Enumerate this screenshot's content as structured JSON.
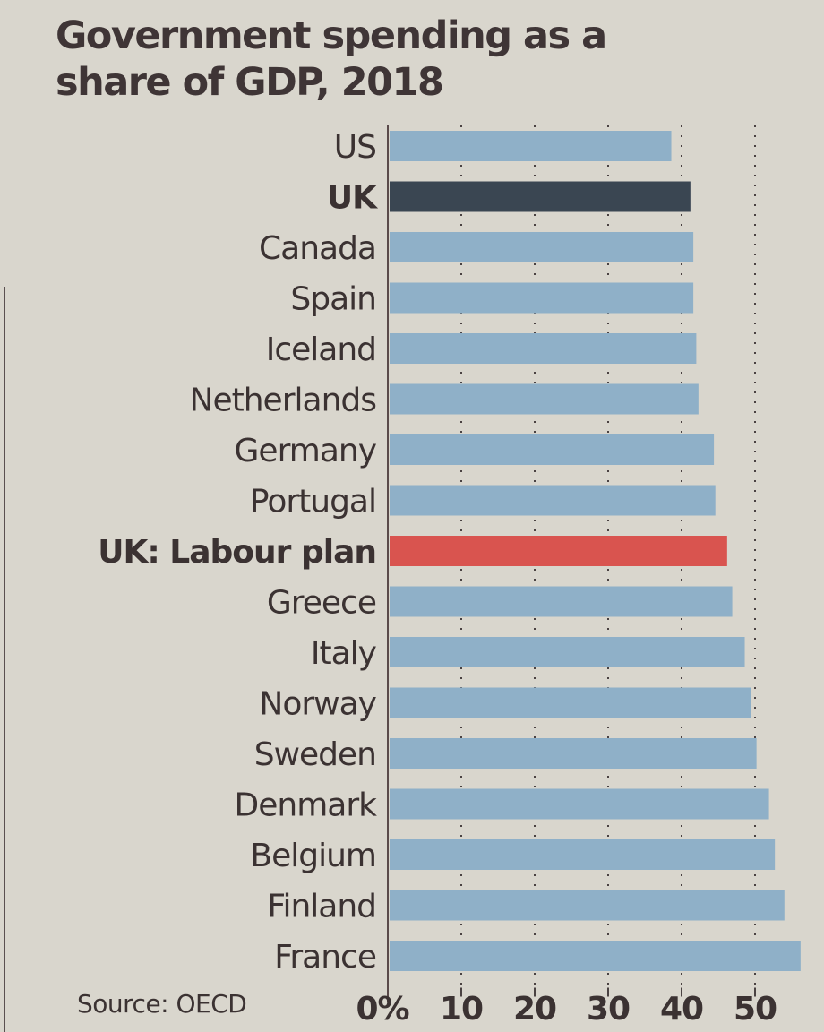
{
  "colors": {
    "background": "#d9d6cd",
    "bar_default": "#8fb0c8",
    "bar_uk": "#3a4652",
    "bar_labour": "#d9544f",
    "text": "#3b3232",
    "gridline": "#4a4242"
  },
  "chart_data": {
    "type": "bar",
    "orientation": "horizontal",
    "title": "Government spending as a share of GDP, 2018",
    "xlabel": "",
    "ylabel": "",
    "source": "Source: OECD",
    "xlim": [
      0,
      57
    ],
    "grid": true,
    "x_ticks": [
      0,
      10,
      20,
      30,
      40,
      50
    ],
    "x_tick_labels": [
      "0%",
      "10",
      "20",
      "30",
      "40",
      "50"
    ],
    "categories": [
      "US",
      "UK",
      "Canada",
      "Spain",
      "Iceland",
      "Netherlands",
      "Germany",
      "Portugal",
      "UK: Labour plan",
      "Greece",
      "Italy",
      "Norway",
      "Sweden",
      "Denmark",
      "Belgium",
      "Finland",
      "France"
    ],
    "values": [
      38.6,
      41.2,
      41.6,
      41.6,
      42.0,
      42.3,
      44.4,
      44.6,
      46.2,
      46.9,
      48.6,
      49.5,
      50.2,
      51.9,
      52.7,
      54.0,
      56.2
    ],
    "highlights": {
      "UK": "uk",
      "UK: Labour plan": "labour"
    },
    "bold_labels": [
      "UK",
      "UK: Labour plan"
    ]
  }
}
